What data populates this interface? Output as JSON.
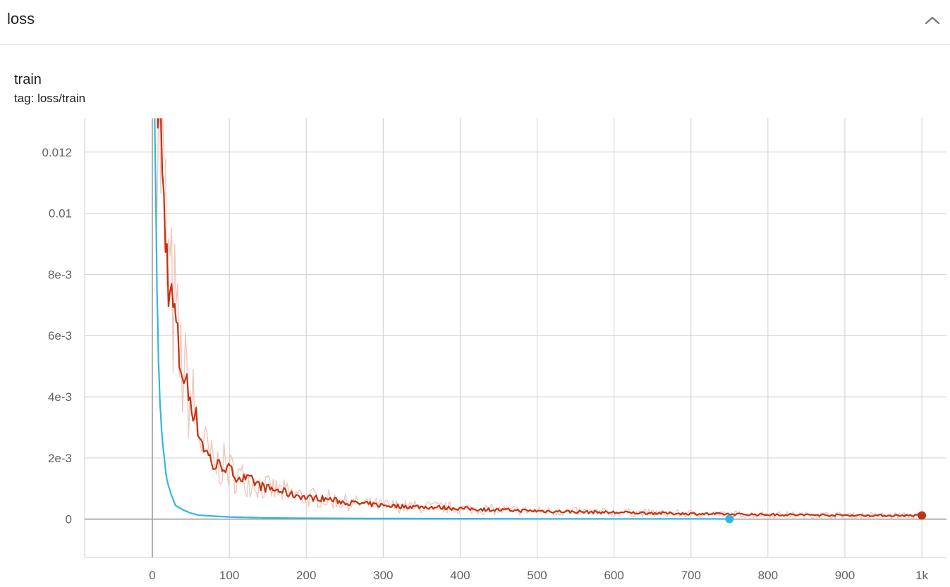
{
  "section": {
    "title": "loss",
    "collapse_icon": "chevron-up-icon"
  },
  "card": {
    "title": "train",
    "tag": "tag: loss/train"
  },
  "colors": {
    "series_red": "#c53211",
    "series_red_raw": "#f2c6bb",
    "series_blue": "#33b5e5",
    "grid": "#cfcfcf",
    "axis": "#9e9e9e"
  },
  "chart_data": {
    "type": "line",
    "title": "train",
    "xlabel": "",
    "ylabel": "",
    "xlim": [
      -88,
      1032
    ],
    "ylim": [
      -0.00125,
      0.0131
    ],
    "x_ticks": [
      {
        "value": 0,
        "label": "0"
      },
      {
        "value": 100,
        "label": "100"
      },
      {
        "value": 200,
        "label": "200"
      },
      {
        "value": 300,
        "label": "300"
      },
      {
        "value": 400,
        "label": "400"
      },
      {
        "value": 500,
        "label": "500"
      },
      {
        "value": 600,
        "label": "600"
      },
      {
        "value": 700,
        "label": "700"
      },
      {
        "value": 800,
        "label": "800"
      },
      {
        "value": 900,
        "label": "900"
      },
      {
        "value": 1000,
        "label": "1k"
      }
    ],
    "y_ticks": [
      {
        "value": 0,
        "label": "0"
      },
      {
        "value": 0.002,
        "label": "2e-3"
      },
      {
        "value": 0.004,
        "label": "4e-3"
      },
      {
        "value": 0.006,
        "label": "6e-3"
      },
      {
        "value": 0.008,
        "label": "8e-3"
      },
      {
        "value": 0.01,
        "label": "0.01"
      },
      {
        "value": 0.012,
        "label": "0.012"
      }
    ],
    "grid": true,
    "series": [
      {
        "color": "#c53211",
        "raw_color": "#f2c6bb",
        "x": [
          5,
          10,
          13,
          16,
          20,
          25,
          30,
          35,
          40,
          45,
          50,
          55,
          60,
          65,
          70,
          75,
          80,
          90,
          100,
          110,
          120,
          130,
          140,
          150,
          160,
          170,
          180,
          190,
          200,
          210,
          220,
          230,
          240,
          250,
          275,
          300,
          325,
          350,
          375,
          400,
          450,
          500,
          550,
          600,
          650,
          700,
          750,
          800,
          850,
          900,
          950,
          1000
        ],
        "y": [
          0.0145,
          0.0129,
          0.0112,
          0.0098,
          0.0081,
          0.0071,
          0.0066,
          0.0052,
          0.0048,
          0.0043,
          0.0039,
          0.0035,
          0.0029,
          0.0025,
          0.0022,
          0.002,
          0.0017,
          0.0018,
          0.0016,
          0.0014,
          0.0013,
          0.00125,
          0.0011,
          0.001,
          0.00095,
          0.0009,
          0.0008,
          0.00078,
          0.0007,
          0.0007,
          0.00068,
          0.00065,
          0.0006,
          0.00055,
          0.0005,
          0.00045,
          0.00042,
          0.0004,
          0.00038,
          0.00035,
          0.0003,
          0.00027,
          0.00024,
          0.00022,
          0.0002,
          0.00018,
          0.00016,
          0.00015,
          0.00014,
          0.00013,
          0.00012,
          0.00012
        ]
      },
      {
        "color": "#33b5e5",
        "x": [
          2,
          4,
          6,
          8,
          10,
          12,
          15,
          18,
          22,
          26,
          30,
          40,
          50,
          60,
          80,
          100,
          150,
          200,
          300,
          400,
          500,
          600,
          700,
          750
        ],
        "y": [
          0.0145,
          0.0115,
          0.0075,
          0.0052,
          0.0038,
          0.0029,
          0.0021,
          0.0014,
          0.001,
          0.0007,
          0.00045,
          0.0003,
          0.0002,
          0.00013,
          0.0001,
          7e-05,
          4e-05,
          3e-05,
          2e-05,
          1.5e-05,
          1e-05,
          1e-05,
          8e-06,
          6e-06
        ]
      }
    ]
  }
}
